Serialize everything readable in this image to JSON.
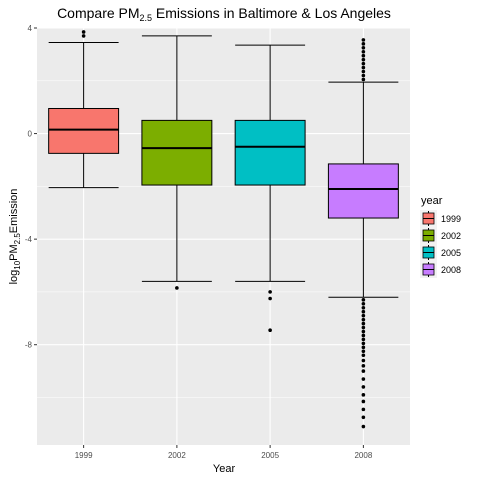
{
  "chart_data": {
    "type": "boxplot",
    "title": {
      "prefix": "Compare PM",
      "subscript": "2.5",
      "suffix": " Emissions in Baltimore & Los Angeles"
    },
    "xlabel": "Year",
    "ylabel": {
      "p1": "log",
      "s1": "10",
      "p2": "PM",
      "s2": "2.5",
      "p3": "Emission"
    },
    "categories": [
      "1999",
      "2002",
      "2005",
      "2008"
    ],
    "ylim": [
      -11.8,
      4.0
    ],
    "y_ticks": [
      4,
      0,
      -4,
      -8
    ],
    "y_tick_labels": [
      "4",
      "0",
      "-4",
      "-8"
    ],
    "grid": true,
    "legend": {
      "title": "year",
      "placement": "right"
    },
    "series": [
      {
        "name": "1999",
        "color": "#F8766D",
        "whisker_low": -2.05,
        "q1": -0.75,
        "median": 0.15,
        "q3": 0.95,
        "whisker_high": 3.45,
        "outliers": [
          3.7,
          3.85
        ]
      },
      {
        "name": "2002",
        "color": "#7CAE00",
        "whisker_low": -5.6,
        "q1": -1.95,
        "median": -0.55,
        "q3": 0.5,
        "whisker_high": 3.7,
        "outliers": [
          -5.85
        ]
      },
      {
        "name": "2005",
        "color": "#00BFC4",
        "whisker_low": -5.6,
        "q1": -1.95,
        "median": -0.5,
        "q3": 0.5,
        "whisker_high": 3.35,
        "outliers": [
          -6.0,
          -6.25,
          -7.45
        ]
      },
      {
        "name": "2008",
        "color": "#C77CFF",
        "whisker_low": -6.2,
        "q1": -3.2,
        "median": -2.1,
        "q3": -1.15,
        "whisker_high": 1.95,
        "outliers": [
          3.55,
          3.4,
          3.25,
          3.1,
          2.95,
          2.8,
          2.65,
          2.5,
          2.35,
          2.2,
          2.05,
          -6.3,
          -6.45,
          -6.6,
          -6.75,
          -6.9,
          -7.05,
          -7.2,
          -7.35,
          -7.5,
          -7.65,
          -7.8,
          -7.95,
          -8.1,
          -8.25,
          -8.4,
          -8.6,
          -8.8,
          -9.0,
          -9.3,
          -9.6,
          -9.9,
          -10.15,
          -10.45,
          -10.75,
          -11.1
        ]
      }
    ]
  }
}
